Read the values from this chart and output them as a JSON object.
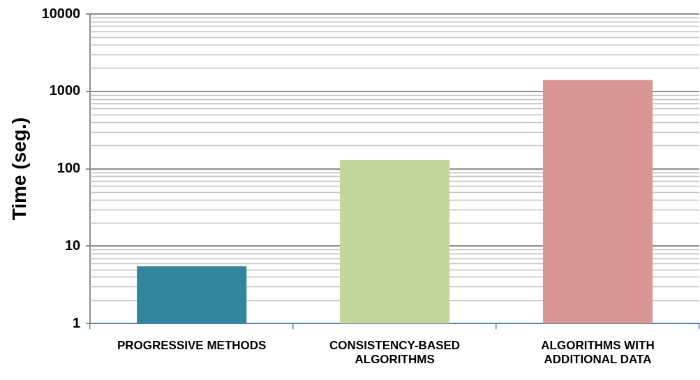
{
  "chart_data": {
    "type": "bar",
    "ylabel": "Time (seg.)",
    "categories": [
      "PROGRESSIVE METHODS",
      "CONSISTENCY-BASED ALGORITHMS",
      "ALGORITHMS WITH ADDITIONAL DATA"
    ],
    "values": [
      5.5,
      130,
      1400
    ],
    "colors": [
      "#31859c",
      "#c3d69b",
      "#d99694"
    ],
    "log": true,
    "ylim": [
      1,
      10000
    ],
    "yticks": [
      1,
      10,
      100,
      1000,
      10000
    ],
    "grid": "y",
    "legend": false
  }
}
